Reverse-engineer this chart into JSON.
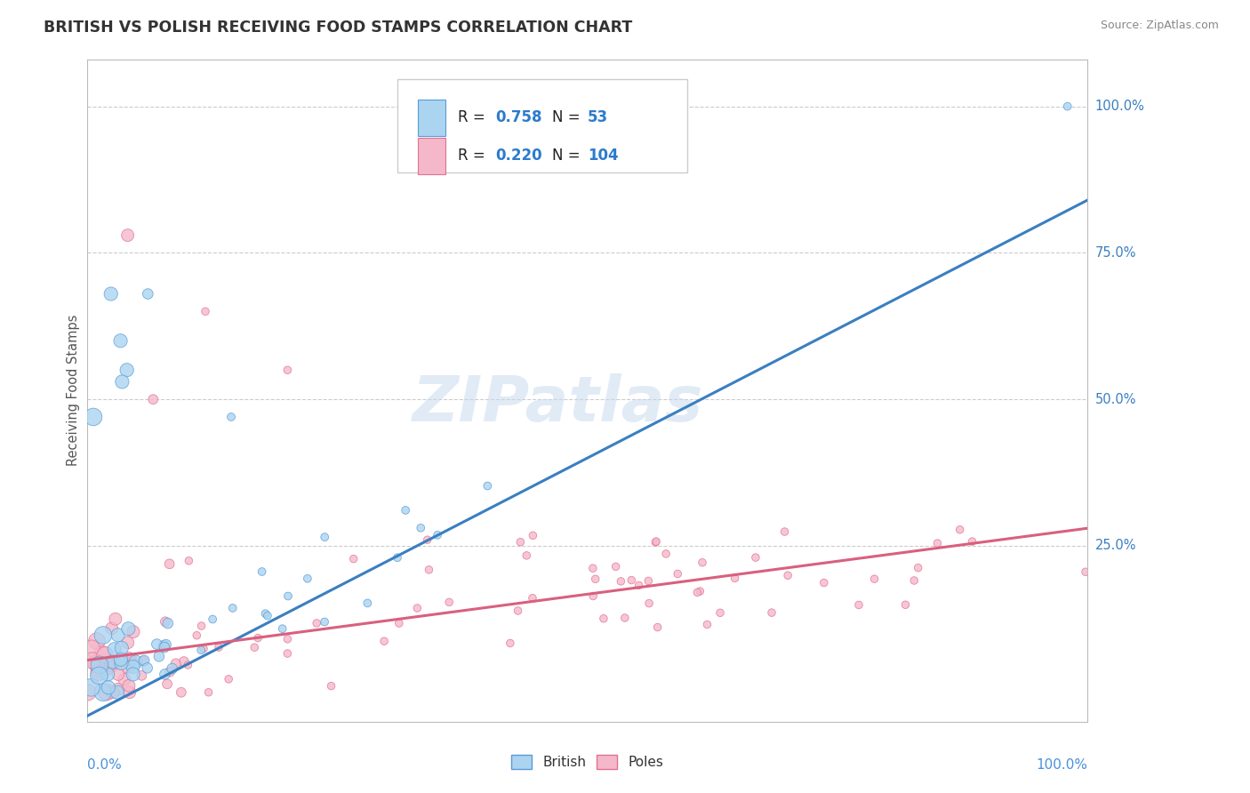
{
  "title": "BRITISH VS POLISH RECEIVING FOOD STAMPS CORRELATION CHART",
  "source": "Source: ZipAtlas.com",
  "ylabel": "Receiving Food Stamps",
  "british_color": "#aad4f0",
  "british_edge_color": "#5b9bd5",
  "british_line_color": "#3a7fc1",
  "poles_color": "#f5b8cb",
  "poles_edge_color": "#e0728f",
  "poles_line_color": "#d9607e",
  "british_R": 0.758,
  "british_N": 53,
  "poles_R": 0.22,
  "poles_N": 104,
  "legend_R_color": "#2b7bcd",
  "legend_N_color": "#2b7bcd",
  "legend_text_color": "#333333",
  "watermark": "ZIPatlas",
  "watermark_color": "#c5d8ed",
  "right_label_blue": "#3a7fc1",
  "right_label_pink": "#d9607e",
  "axis_label_color": "#4a90d9",
  "grid_color": "#cccccc",
  "border_color": "#bbbbbb"
}
